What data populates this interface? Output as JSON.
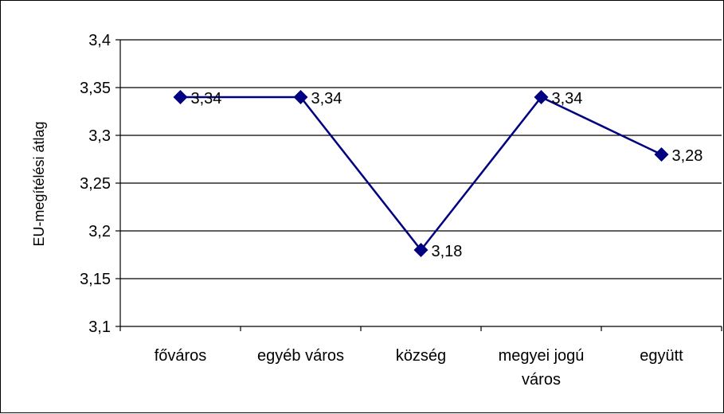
{
  "chart_data": {
    "type": "line",
    "categories": [
      [
        "főváros"
      ],
      [
        "egyéb város"
      ],
      [
        "község"
      ],
      [
        "megyei jogú",
        "város"
      ],
      [
        "együtt"
      ]
    ],
    "values": [
      3.34,
      3.34,
      3.18,
      3.34,
      3.28
    ],
    "data_labels": [
      "3,34",
      "3,34",
      "3,18",
      "3,34",
      "3,28"
    ],
    "ylabel": "EU-megítélési átlag",
    "ylim": [
      3.1,
      3.4
    ],
    "yticks": [
      3.1,
      3.15,
      3.2,
      3.25,
      3.3,
      3.35,
      3.4
    ],
    "ytick_labels": [
      "3,1",
      "3,15",
      "3,2",
      "3,25",
      "3,3",
      "3,35",
      "3,4"
    ],
    "grid": true,
    "legend": "none",
    "line_color": "#000080",
    "marker": "diamond"
  }
}
